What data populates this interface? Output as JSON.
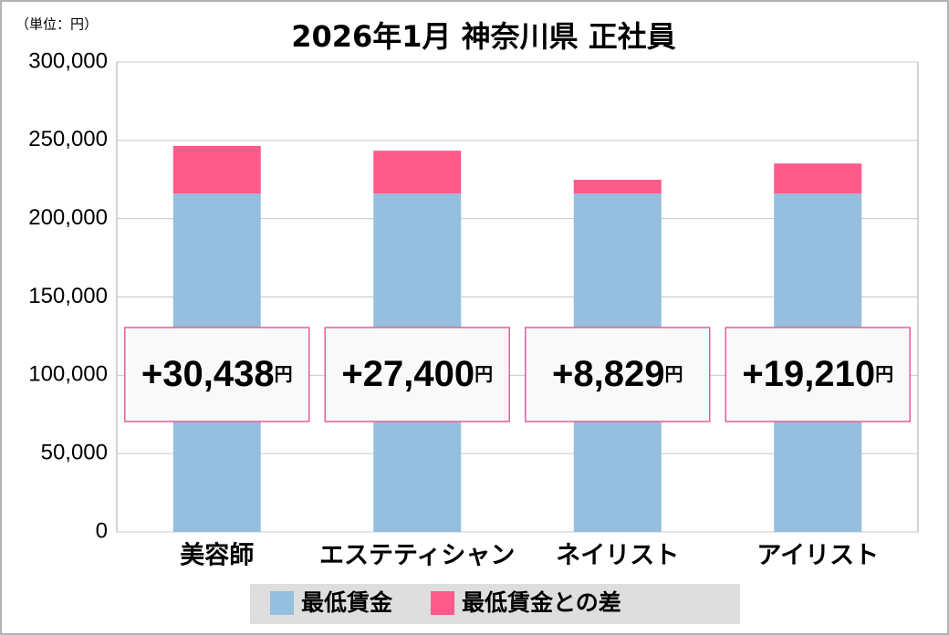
{
  "chart_data": {
    "type": "stacked-bar",
    "title": "2026年1月 神奈川県 正社員",
    "unit_label": "（単位：円）",
    "categories": [
      "美容師",
      "エステティシャン",
      "ネイリスト",
      "アイリスト"
    ],
    "series": [
      {
        "name": "最低賃金",
        "color": "#94bfdf",
        "values": [
          216000,
          216000,
          216000,
          216000
        ]
      },
      {
        "name": "最低賃金との差",
        "color": "#fe5a8c",
        "values": [
          30438,
          27400,
          8829,
          19210
        ],
        "value_labels": [
          "+30,438円",
          "+27,400円",
          "+8,829円",
          "+19,210円"
        ]
      }
    ],
    "ylim": [
      0,
      300000
    ],
    "yticks": [
      0,
      {
        "value": 50000,
        "label": "50,000"
      },
      {
        "value": 100000,
        "label": "100,000"
      },
      {
        "value": 150000,
        "label": "150,000"
      },
      {
        "value": 200000,
        "label": "200,000"
      },
      {
        "value": 250000,
        "label": "250,000"
      },
      {
        "value": 300000,
        "label": "300,000"
      }
    ],
    "grid": true,
    "legend": "bottom"
  }
}
